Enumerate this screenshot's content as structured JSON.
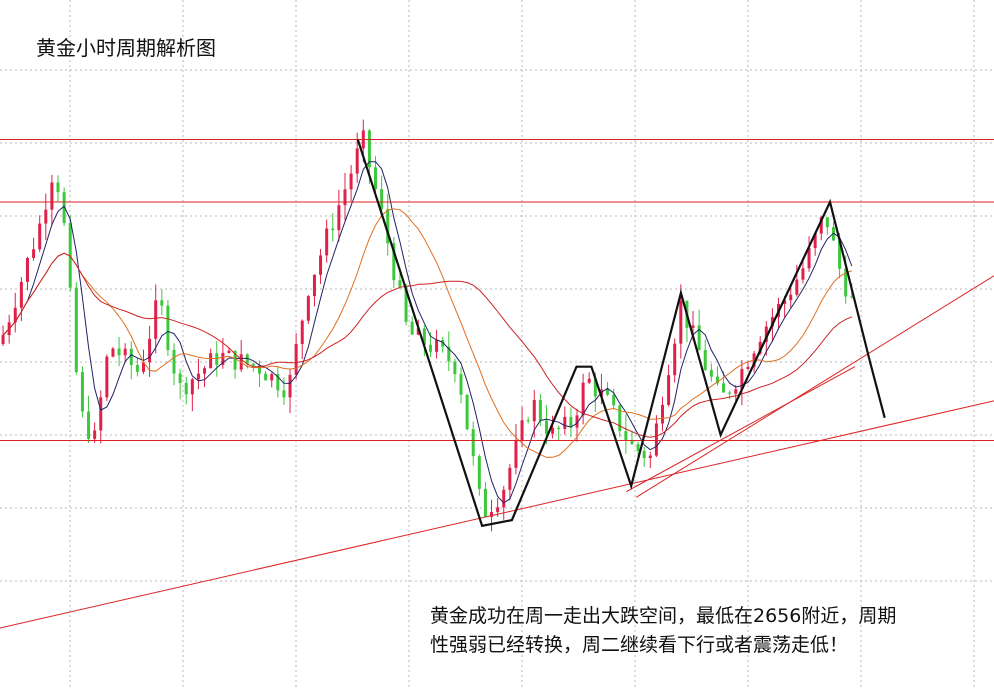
{
  "chart_data": {
    "type": "candlestick",
    "title": "黄金小时周期解析图",
    "annotation": [
      "黄金成功在周一走出大跌空间，最低在2656附近，周期",
      "性强弱已经转换，周二继续看下行或者震荡走低！"
    ],
    "grid": true,
    "grid_style": "dotted",
    "colors": {
      "up": "#e0204a",
      "down": "#3cc83c",
      "ma_fast": "#222266",
      "ma_mid": "#e07020",
      "ma_slow": "#cc2222",
      "levels": "#dd2222",
      "trend": "#dd2222",
      "zigzag": "#111111",
      "grid": "#b8b8b8"
    },
    "ylim": [
      0,
      100
    ],
    "horizontal_levels": [
      86,
      75,
      33
    ],
    "rising_trendlines": [
      {
        "from": [
          0,
          0
        ],
        "to": [
          1,
          40
        ]
      },
      {
        "from": [
          0.64,
          23
        ],
        "to": [
          1,
          62
        ]
      },
      {
        "from": [
          0.63,
          24
        ],
        "to": [
          0.86,
          46
        ]
      }
    ],
    "zigzag": [
      [
        0.36,
        86
      ],
      [
        0.485,
        18
      ],
      [
        0.515,
        19
      ],
      [
        0.58,
        46
      ],
      [
        0.595,
        46
      ],
      [
        0.635,
        25
      ],
      [
        0.685,
        59
      ],
      [
        0.725,
        34
      ],
      [
        0.835,
        75
      ],
      [
        0.875,
        47
      ],
      [
        0.89,
        37
      ]
    ],
    "candle_count": 140
  }
}
